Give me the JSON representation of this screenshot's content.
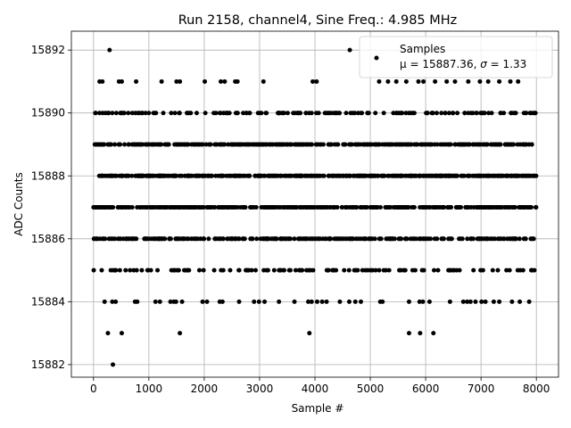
{
  "chart_data": {
    "type": "scatter",
    "title": "Run 2158, channel4, Sine Freq.: 4.985 MHz",
    "xlabel": "Sample #",
    "ylabel": "ADC Counts",
    "xlim": [
      -400,
      8400
    ],
    "ylim": [
      15881.6,
      15892.6
    ],
    "xticks": [
      0,
      1000,
      2000,
      3000,
      4000,
      5000,
      6000,
      7000,
      8000
    ],
    "yticks": [
      15882,
      15884,
      15886,
      15888,
      15890,
      15892
    ],
    "grid": true,
    "marker_color": "#000000",
    "legend": {
      "placement": "top-right",
      "series_name": "Samples",
      "stats_prefix": "μ = 15887.36, ",
      "stats_sigma_symbol": "σ",
      "stats_suffix": " = 1.33"
    },
    "series": [
      {
        "name": "Samples",
        "n_samples": 8000,
        "dense_levels": [
          15885,
          15886,
          15887,
          15888,
          15889,
          15890
        ],
        "sparse_points": [
          {
            "x": 290,
            "y": 15892
          },
          {
            "x": 4630,
            "y": 15892
          },
          {
            "x": 110,
            "y": 15891
          },
          {
            "x": 160,
            "y": 15891
          },
          {
            "x": 460,
            "y": 15891
          },
          {
            "x": 510,
            "y": 15891
          },
          {
            "x": 770,
            "y": 15891
          },
          {
            "x": 1230,
            "y": 15891
          },
          {
            "x": 1500,
            "y": 15891
          },
          {
            "x": 1560,
            "y": 15891
          },
          {
            "x": 2010,
            "y": 15891
          },
          {
            "x": 2300,
            "y": 15891
          },
          {
            "x": 2370,
            "y": 15891
          },
          {
            "x": 2560,
            "y": 15891
          },
          {
            "x": 2600,
            "y": 15891
          },
          {
            "x": 3070,
            "y": 15891
          },
          {
            "x": 3960,
            "y": 15891
          },
          {
            "x": 4030,
            "y": 15891
          },
          {
            "x": 5160,
            "y": 15891
          },
          {
            "x": 5320,
            "y": 15891
          },
          {
            "x": 5470,
            "y": 15891
          },
          {
            "x": 5650,
            "y": 15891
          },
          {
            "x": 5870,
            "y": 15891
          },
          {
            "x": 5960,
            "y": 15891
          },
          {
            "x": 6170,
            "y": 15891
          },
          {
            "x": 6380,
            "y": 15891
          },
          {
            "x": 6530,
            "y": 15891
          },
          {
            "x": 6770,
            "y": 15891
          },
          {
            "x": 6980,
            "y": 15891
          },
          {
            "x": 7130,
            "y": 15891
          },
          {
            "x": 7330,
            "y": 15891
          },
          {
            "x": 7530,
            "y": 15891
          },
          {
            "x": 7670,
            "y": 15891
          },
          {
            "x": 200,
            "y": 15884
          },
          {
            "x": 340,
            "y": 15884
          },
          {
            "x": 400,
            "y": 15884
          },
          {
            "x": 750,
            "y": 15884
          },
          {
            "x": 790,
            "y": 15884
          },
          {
            "x": 1120,
            "y": 15884
          },
          {
            "x": 1200,
            "y": 15884
          },
          {
            "x": 1390,
            "y": 15884
          },
          {
            "x": 1450,
            "y": 15884
          },
          {
            "x": 1490,
            "y": 15884
          },
          {
            "x": 1600,
            "y": 15884
          },
          {
            "x": 1970,
            "y": 15884
          },
          {
            "x": 2050,
            "y": 15884
          },
          {
            "x": 2280,
            "y": 15884
          },
          {
            "x": 2330,
            "y": 15884
          },
          {
            "x": 2630,
            "y": 15884
          },
          {
            "x": 2900,
            "y": 15884
          },
          {
            "x": 2990,
            "y": 15884
          },
          {
            "x": 3090,
            "y": 15884
          },
          {
            "x": 3350,
            "y": 15884
          },
          {
            "x": 3630,
            "y": 15884
          },
          {
            "x": 3880,
            "y": 15884
          },
          {
            "x": 3940,
            "y": 15884
          },
          {
            "x": 4040,
            "y": 15884
          },
          {
            "x": 4130,
            "y": 15884
          },
          {
            "x": 4210,
            "y": 15884
          },
          {
            "x": 4450,
            "y": 15884
          },
          {
            "x": 4620,
            "y": 15884
          },
          {
            "x": 4730,
            "y": 15884
          },
          {
            "x": 4830,
            "y": 15884
          },
          {
            "x": 5180,
            "y": 15884
          },
          {
            "x": 5220,
            "y": 15884
          },
          {
            "x": 5700,
            "y": 15884
          },
          {
            "x": 5890,
            "y": 15884
          },
          {
            "x": 5950,
            "y": 15884
          },
          {
            "x": 6070,
            "y": 15884
          },
          {
            "x": 6440,
            "y": 15884
          },
          {
            "x": 6680,
            "y": 15884
          },
          {
            "x": 6750,
            "y": 15884
          },
          {
            "x": 6810,
            "y": 15884
          },
          {
            "x": 6900,
            "y": 15884
          },
          {
            "x": 7010,
            "y": 15884
          },
          {
            "x": 7080,
            "y": 15884
          },
          {
            "x": 7230,
            "y": 15884
          },
          {
            "x": 7330,
            "y": 15884
          },
          {
            "x": 7560,
            "y": 15884
          },
          {
            "x": 7700,
            "y": 15884
          },
          {
            "x": 7870,
            "y": 15884
          },
          {
            "x": 260,
            "y": 15883
          },
          {
            "x": 510,
            "y": 15883
          },
          {
            "x": 1560,
            "y": 15883
          },
          {
            "x": 3900,
            "y": 15883
          },
          {
            "x": 5700,
            "y": 15883
          },
          {
            "x": 5900,
            "y": 15883
          },
          {
            "x": 6140,
            "y": 15883
          },
          {
            "x": 350,
            "y": 15882
          }
        ]
      }
    ]
  }
}
